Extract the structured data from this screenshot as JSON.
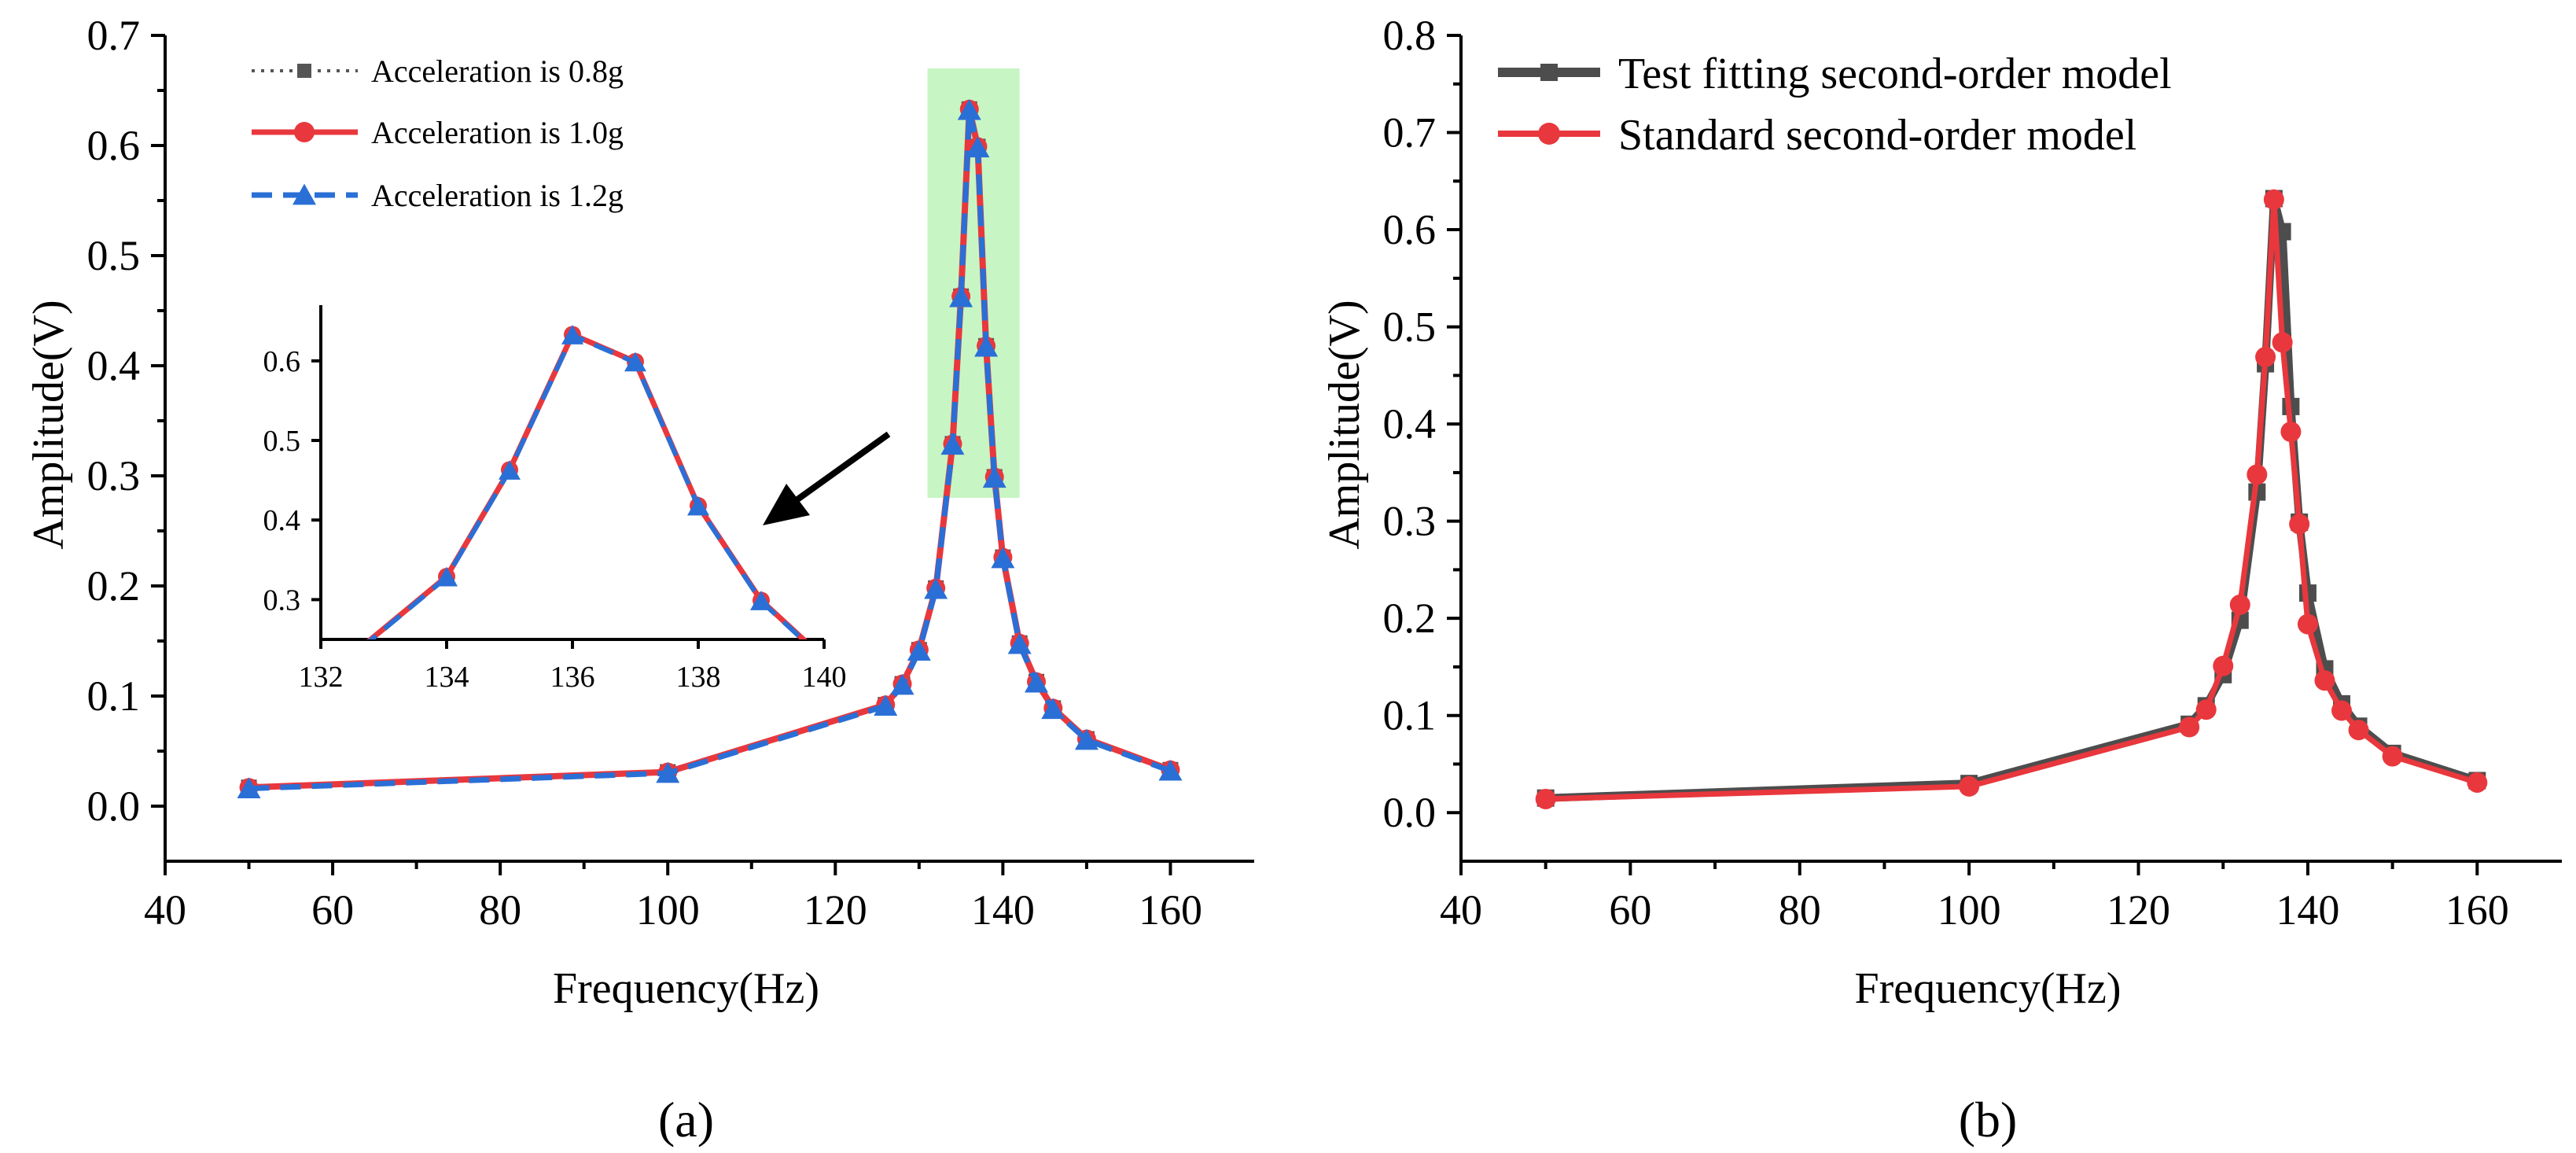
{
  "chart_data": [
    {
      "type": "line",
      "panel_label": "(a)",
      "xlabel": "Frequency(Hz)",
      "ylabel": "Amplitude(V)",
      "xlim": [
        40,
        170
      ],
      "ylim": [
        -0.05,
        0.7
      ],
      "xticks": [
        40,
        60,
        80,
        100,
        120,
        140,
        160
      ],
      "yticks": [
        0.0,
        0.1,
        0.2,
        0.3,
        0.4,
        0.5,
        0.6,
        0.7
      ],
      "highlight": {
        "x_range": [
          131,
          142
        ],
        "y_range": [
          0.28,
          0.67
        ],
        "color": "#b6f2b0"
      },
      "legend": "top-left",
      "series": [
        {
          "name": "Acceleration is 0.8g",
          "color": "#555555",
          "marker": "square",
          "line": "dotted",
          "x": [
            50,
            100,
            126,
            128,
            130,
            132,
            134,
            135,
            136,
            137,
            138,
            139,
            140,
            142,
            144,
            146,
            150,
            160
          ],
          "y": [
            0.017,
            0.031,
            0.092,
            0.111,
            0.142,
            0.198,
            0.329,
            0.463,
            0.633,
            0.599,
            0.418,
            0.299,
            0.226,
            0.148,
            0.113,
            0.089,
            0.061,
            0.033
          ]
        },
        {
          "name": "Acceleration is 1.0g",
          "color": "#e8383d",
          "marker": "circle",
          "line": "solid",
          "x": [
            50,
            100,
            126,
            128,
            130,
            132,
            134,
            135,
            136,
            137,
            138,
            139,
            140,
            142,
            144,
            146,
            150,
            160
          ],
          "y": [
            0.017,
            0.031,
            0.092,
            0.111,
            0.142,
            0.198,
            0.329,
            0.463,
            0.633,
            0.599,
            0.418,
            0.299,
            0.226,
            0.148,
            0.113,
            0.089,
            0.061,
            0.033
          ]
        },
        {
          "name": "Acceleration is 1.2g",
          "color": "#2a6fd6",
          "marker": "triangle",
          "line": "dashed",
          "x": [
            50,
            100,
            126,
            128,
            130,
            132,
            134,
            135,
            136,
            137,
            138,
            139,
            140,
            142,
            144,
            146,
            150,
            160
          ],
          "y": [
            0.016,
            0.03,
            0.091,
            0.11,
            0.141,
            0.197,
            0.328,
            0.462,
            0.632,
            0.598,
            0.417,
            0.298,
            0.225,
            0.147,
            0.112,
            0.088,
            0.06,
            0.032
          ]
        }
      ],
      "inset": {
        "xlim": [
          132,
          140
        ],
        "ylim": [
          0.25,
          0.67
        ],
        "xticks": [
          132,
          134,
          136,
          138,
          140
        ],
        "yticks": [
          0.3,
          0.4,
          0.5,
          0.6
        ],
        "ytick_labels": [
          "0.3",
          "0.4",
          "0.5",
          "0.6"
        ]
      },
      "annotation": "arrow pointing from peak region to inset"
    },
    {
      "type": "line",
      "panel_label": "(b)",
      "xlabel": "Frequency(Hz)",
      "ylabel": "Amplitude(V)",
      "xlim": [
        40,
        170
      ],
      "ylim": [
        -0.05,
        0.8
      ],
      "xticks": [
        40,
        60,
        80,
        100,
        120,
        140,
        160
      ],
      "yticks": [
        0.0,
        0.1,
        0.2,
        0.3,
        0.4,
        0.5,
        0.6,
        0.7,
        0.8
      ],
      "legend": "top-left",
      "series": [
        {
          "name": "Test fitting second-order model",
          "color": "#4d4d4d",
          "marker": "square",
          "line": "solid",
          "x": [
            50,
            100,
            126,
            128,
            130,
            132,
            134,
            135,
            136,
            137,
            138,
            139,
            140,
            142,
            144,
            146,
            150,
            160
          ],
          "y": [
            0.015,
            0.03,
            0.091,
            0.11,
            0.142,
            0.198,
            0.33,
            0.462,
            0.632,
            0.598,
            0.418,
            0.299,
            0.226,
            0.148,
            0.112,
            0.089,
            0.061,
            0.033
          ]
        },
        {
          "name": "Standard second-order model",
          "color": "#e8383d",
          "marker": "circle",
          "line": "solid",
          "x": [
            50,
            100,
            126,
            128,
            130,
            132,
            134,
            135,
            136,
            137,
            138,
            139,
            140,
            142,
            144,
            146,
            150,
            160
          ],
          "y": [
            0.014,
            0.027,
            0.088,
            0.106,
            0.151,
            0.214,
            0.348,
            0.469,
            0.631,
            0.484,
            0.392,
            0.297,
            0.194,
            0.136,
            0.105,
            0.085,
            0.058,
            0.031
          ]
        }
      ]
    }
  ]
}
